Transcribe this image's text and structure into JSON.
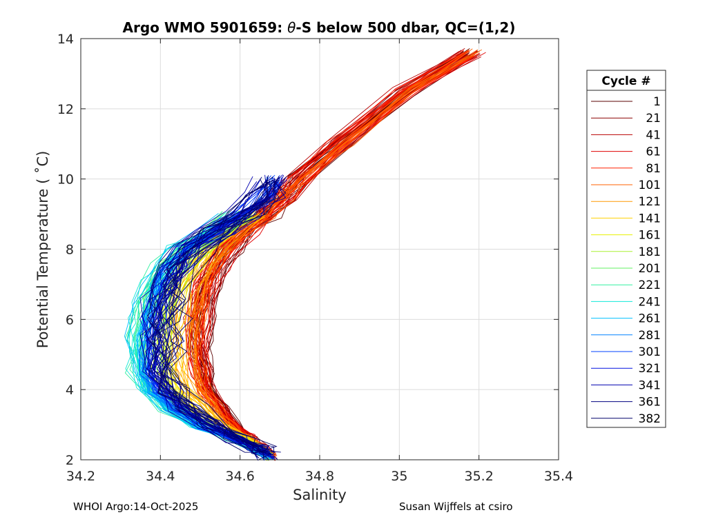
{
  "chart_data": {
    "type": "line",
    "title": "Argo WMO 5901659: θ-S below 500 dbar,  QC=(1,2)",
    "title_prefix": "Argo WMO 5901659: ",
    "title_theta": "θ",
    "title_suffix": "-S below 500 dbar,  QC=(1,2)",
    "xlabel": "Salinity",
    "ylabel": "Potential Temperature ( ˚C)",
    "xlim": [
      34.2,
      35.4
    ],
    "ylim": [
      2,
      14
    ],
    "xticks": [
      "34.2",
      "34.4",
      "34.6",
      "34.8",
      "35",
      "35.2",
      "35.4"
    ],
    "yticks": [
      "2",
      "4",
      "6",
      "8",
      "10",
      "12",
      "14"
    ],
    "grid": true,
    "legend": {
      "title": "Cycle #",
      "placement": "outside-right",
      "entries": [
        {
          "label": "1",
          "color": "#5a0000"
        },
        {
          "label": "21",
          "color": "#8a0000"
        },
        {
          "label": "41",
          "color": "#b80000"
        },
        {
          "label": "61",
          "color": "#e00000"
        },
        {
          "label": "81",
          "color": "#ff2000"
        },
        {
          "label": "101",
          "color": "#ff6000"
        },
        {
          "label": "121",
          "color": "#ff9800"
        },
        {
          "label": "141",
          "color": "#ffd000"
        },
        {
          "label": "161",
          "color": "#e8f000"
        },
        {
          "label": "181",
          "color": "#a8f030"
        },
        {
          "label": "201",
          "color": "#60f060"
        },
        {
          "label": "221",
          "color": "#30f0a0"
        },
        {
          "label": "241",
          "color": "#10e8d8"
        },
        {
          "label": "261",
          "color": "#00c0ff"
        },
        {
          "label": "281",
          "color": "#0080ff"
        },
        {
          "label": "301",
          "color": "#0040ff"
        },
        {
          "label": "321",
          "color": "#0010e0"
        },
        {
          "label": "341",
          "color": "#0000b0"
        },
        {
          "label": "361",
          "color": "#000080"
        },
        {
          "label": "382",
          "color": "#00006a"
        }
      ]
    },
    "representative_profile": {
      "theta": [
        13.6,
        12.5,
        11.0,
        10.0,
        9.5,
        9.0,
        8.5,
        8.0,
        7.5,
        7.0,
        6.5,
        6.0,
        5.5,
        5.0,
        4.5,
        4.0,
        3.5,
        3.0,
        2.6,
        2.3,
        2.1
      ],
      "salinity_by_group": {
        "early": [
          35.18,
          35.02,
          34.85,
          34.75,
          34.71,
          34.67,
          34.62,
          34.58,
          34.55,
          34.53,
          34.52,
          34.51,
          34.51,
          34.51,
          34.52,
          34.53,
          34.56,
          34.59,
          34.63,
          34.66,
          34.68
        ],
        "mid": [
          null,
          null,
          null,
          null,
          null,
          34.58,
          34.52,
          34.44,
          34.4,
          34.37,
          34.35,
          34.34,
          34.33,
          34.33,
          34.33,
          34.35,
          34.4,
          34.48,
          34.58,
          34.64,
          34.67
        ],
        "late": [
          null,
          null,
          null,
          34.68,
          34.66,
          34.62,
          34.55,
          34.49,
          34.46,
          34.44,
          34.43,
          34.42,
          34.42,
          34.42,
          34.42,
          34.44,
          34.48,
          34.54,
          34.6,
          34.65,
          34.67
        ]
      }
    }
  },
  "footer": {
    "left": "WHOI Argo:14-Oct-2025",
    "right": "Susan Wijffels at csiro"
  }
}
